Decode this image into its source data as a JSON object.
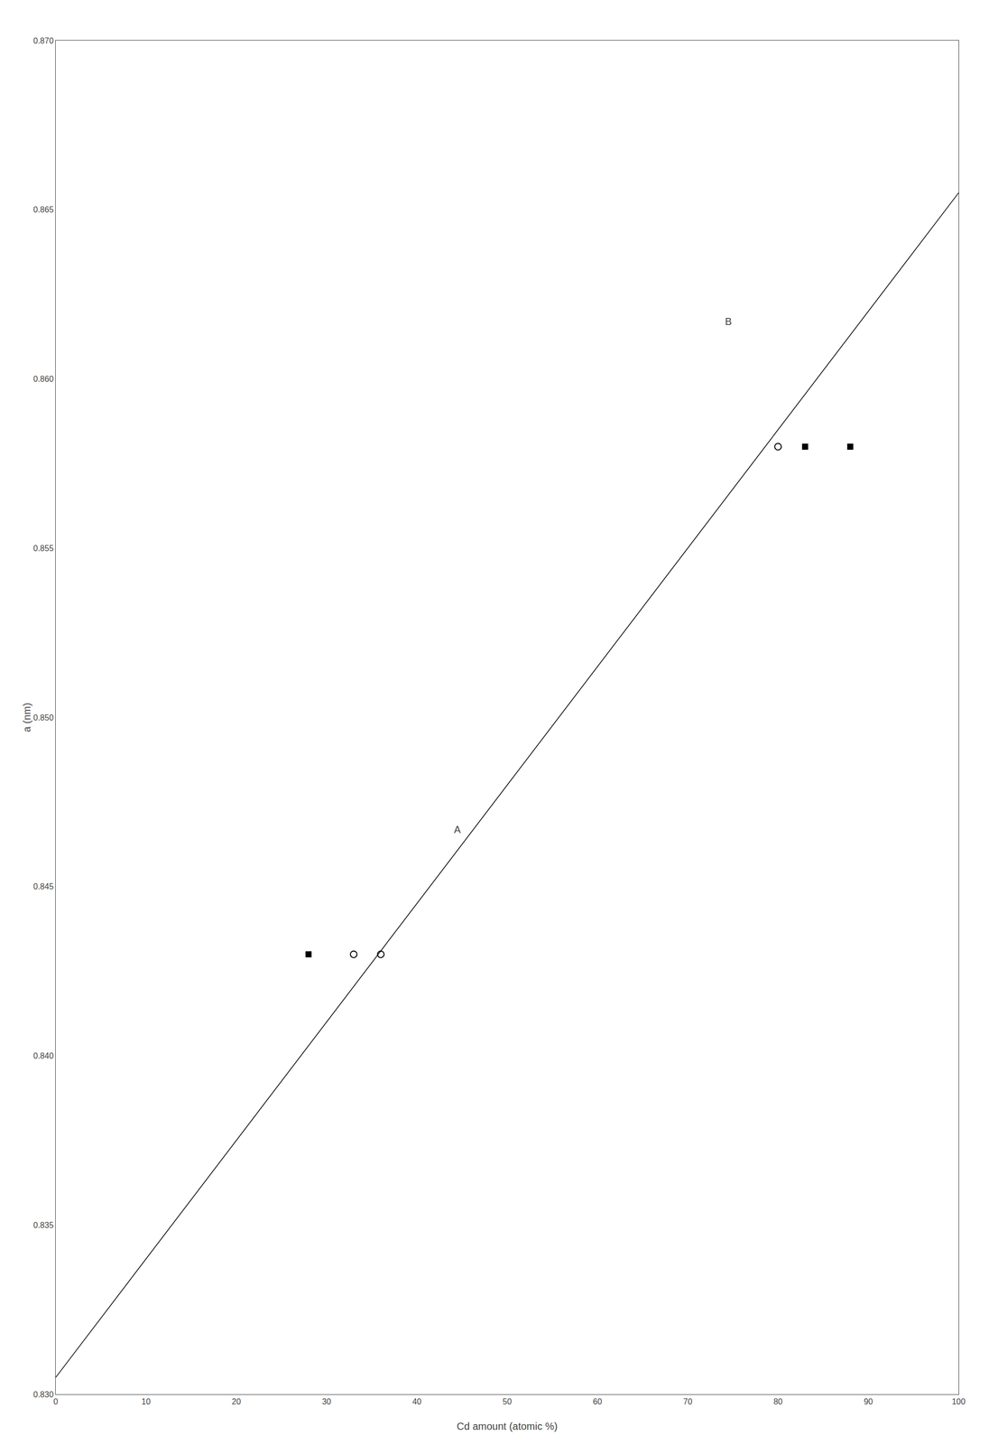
{
  "chart_data": {
    "type": "scatter",
    "xlabel": "Cd amount (atomic %)",
    "ylabel": "a (nm)",
    "xlim": [
      0,
      100
    ],
    "ylim": [
      0.83,
      0.87
    ],
    "xticks": [
      0,
      10,
      20,
      30,
      40,
      50,
      60,
      70,
      80,
      90,
      100
    ],
    "yticks": [
      {
        "value": 0.83,
        "label": "0.830"
      },
      0.835,
      {
        "value": 0.84,
        "label": "0.840"
      },
      0.845,
      {
        "value": 0.85,
        "label": "0.850"
      },
      0.855,
      {
        "value": 0.86,
        "label": "0.860"
      },
      0.865,
      {
        "value": 0.87,
        "label": "0.870"
      }
    ],
    "grid": false,
    "series": [
      {
        "type": "line",
        "line_style": "solid",
        "color": "black",
        "x": [
          0,
          100
        ],
        "values": [
          0.8305,
          0.8655
        ]
      },
      {
        "type": "scatter",
        "marker": "square",
        "color": "black",
        "x": [
          28
        ],
        "values": [
          0.843
        ]
      },
      {
        "type": "scatter",
        "marker": "circle-open",
        "color": "black",
        "x": [
          33,
          36
        ],
        "values": [
          0.843,
          0.843
        ]
      },
      {
        "type": "scatter",
        "marker": "square",
        "color": "black",
        "x": [
          83,
          88
        ],
        "values": [
          0.858,
          0.858
        ]
      },
      {
        "type": "scatter",
        "marker": "circle-open",
        "color": "black",
        "x": [
          80
        ],
        "values": [
          0.858
        ]
      }
    ],
    "annotations": [
      {
        "text": "A",
        "x": 44,
        "y": 0.8465
      },
      {
        "text": "B",
        "x": 74,
        "y": 0.8615
      }
    ]
  }
}
